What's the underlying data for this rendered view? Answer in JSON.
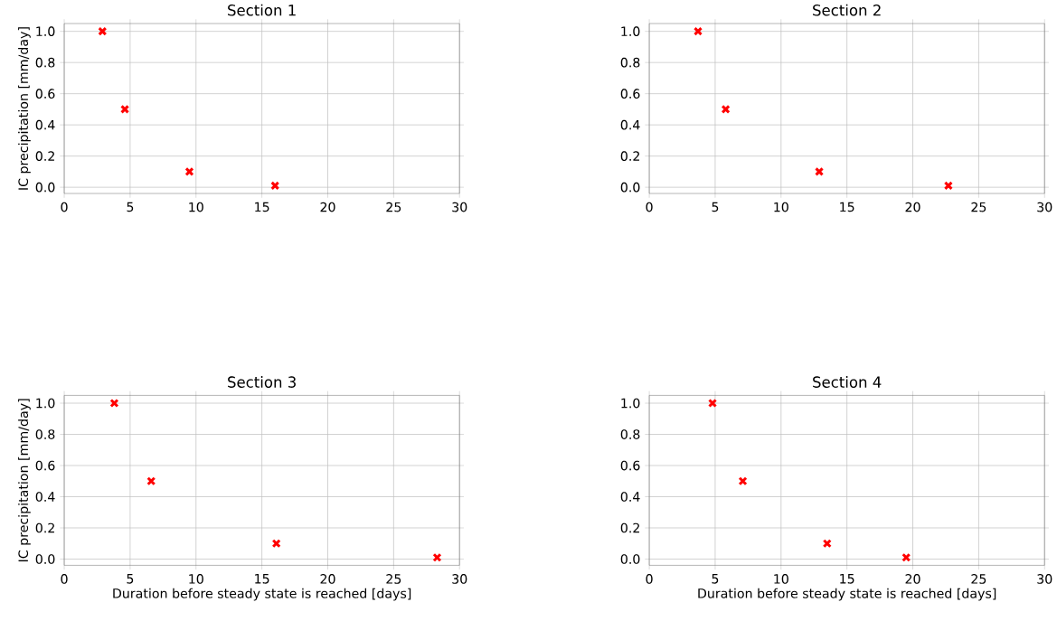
{
  "chart_data": [
    {
      "type": "scatter",
      "title": "Section 1",
      "ylabel": "IC precipitation [mm/day]",
      "xlim": [
        0,
        30
      ],
      "xticks": [
        0,
        5,
        10,
        15,
        20,
        25,
        30
      ],
      "ylim": [
        -0.04,
        1.05
      ],
      "yticks": [
        {
          "value": 0,
          "label": "0.0"
        },
        {
          "value": 0.2,
          "label": "0.2"
        },
        {
          "value": 0.4,
          "label": "0.4"
        },
        {
          "value": 0.6,
          "label": "0.6"
        },
        {
          "value": 0.8,
          "label": "0.8"
        },
        {
          "value": 1,
          "label": "1.0"
        }
      ],
      "grid": true,
      "marker": "cross",
      "series": [
        {
          "color": "#ff0000",
          "x": [
            2.9,
            4.6,
            9.5,
            16.0
          ],
          "values": [
            1.0,
            0.5,
            0.1,
            0.01
          ]
        }
      ]
    },
    {
      "type": "scatter",
      "title": "Section 2",
      "xlim": [
        0,
        30
      ],
      "xticks": [
        0,
        5,
        10,
        15,
        20,
        25,
        30
      ],
      "ylim": [
        -0.04,
        1.05
      ],
      "yticks": [
        {
          "value": 0,
          "label": "0.0"
        },
        {
          "value": 0.2,
          "label": "0.2"
        },
        {
          "value": 0.4,
          "label": "0.4"
        },
        {
          "value": 0.6,
          "label": "0.6"
        },
        {
          "value": 0.8,
          "label": "0.8"
        },
        {
          "value": 1,
          "label": "1.0"
        }
      ],
      "grid": true,
      "marker": "cross",
      "series": [
        {
          "color": "#ff0000",
          "x": [
            3.7,
            5.8,
            12.9,
            22.7
          ],
          "values": [
            1.0,
            0.5,
            0.1,
            0.01
          ]
        }
      ]
    },
    {
      "type": "scatter",
      "title": "Section 3",
      "xlabel": "Duration before steady state is reached [days]",
      "ylabel": "IC precipitation [mm/day]",
      "xlim": [
        0,
        30
      ],
      "xticks": [
        0,
        5,
        10,
        15,
        20,
        25,
        30
      ],
      "ylim": [
        -0.04,
        1.05
      ],
      "yticks": [
        {
          "value": 0,
          "label": "0.0"
        },
        {
          "value": 0.2,
          "label": "0.2"
        },
        {
          "value": 0.4,
          "label": "0.4"
        },
        {
          "value": 0.6,
          "label": "0.6"
        },
        {
          "value": 0.8,
          "label": "0.8"
        },
        {
          "value": 1,
          "label": "1.0"
        }
      ],
      "grid": true,
      "marker": "cross",
      "series": [
        {
          "color": "#ff0000",
          "x": [
            3.8,
            6.6,
            16.1,
            28.3
          ],
          "values": [
            1.0,
            0.5,
            0.1,
            0.01
          ]
        }
      ]
    },
    {
      "type": "scatter",
      "title": "Section 4",
      "xlabel": "Duration before steady state is reached [days]",
      "xlim": [
        0,
        30
      ],
      "xticks": [
        0,
        5,
        10,
        15,
        20,
        25,
        30
      ],
      "ylim": [
        -0.04,
        1.05
      ],
      "yticks": [
        {
          "value": 0,
          "label": "0.0"
        },
        {
          "value": 0.2,
          "label": "0.2"
        },
        {
          "value": 0.4,
          "label": "0.4"
        },
        {
          "value": 0.6,
          "label": "0.6"
        },
        {
          "value": 0.8,
          "label": "0.8"
        },
        {
          "value": 1,
          "label": "1.0"
        }
      ],
      "grid": true,
      "marker": "cross",
      "series": [
        {
          "color": "#ff0000",
          "x": [
            4.8,
            7.1,
            13.5,
            19.5
          ],
          "values": [
            1.0,
            0.5,
            0.1,
            0.01
          ]
        }
      ]
    }
  ]
}
